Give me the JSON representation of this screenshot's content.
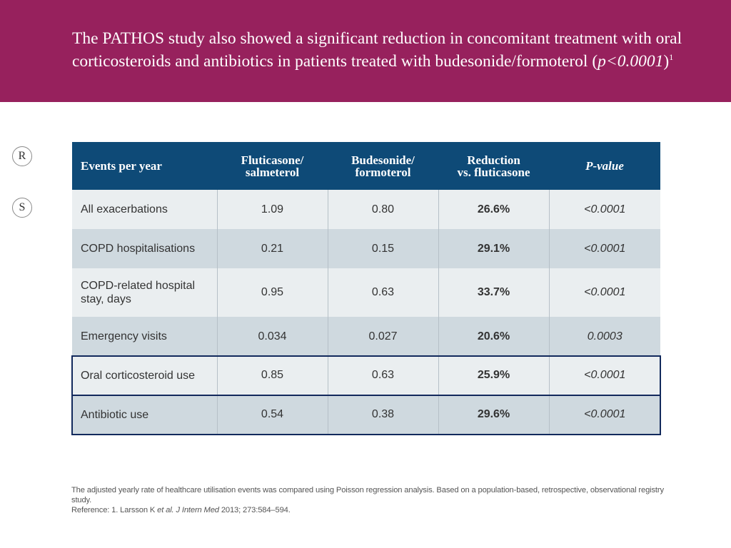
{
  "header": {
    "title_main": "The PATHOS study also showed a significant reduction in concomitant treatment with oral corticosteroids and antibiotics in patients treated with budesonide/formoterol (",
    "title_p": "p<0.0001",
    "title_close": ")",
    "title_sup": "1",
    "background_color": "#97215d"
  },
  "side_markers": {
    "r": "R",
    "s": "S"
  },
  "table": {
    "header_color": "#0e4a77",
    "columns": {
      "events": "Events per year",
      "flu_line1": "Fluticasone/",
      "flu_line2": "salmeterol",
      "bud_line1": "Budesonide/",
      "bud_line2": "formoterol",
      "red_line1": "Reduction",
      "red_line2": "vs. fluticasone",
      "pvalue": "P-value"
    },
    "rows": [
      {
        "event": "All exacerbations",
        "fluticasone": "1.09",
        "budesonide": "0.80",
        "reduction": "26.6%",
        "pvalue": "<0.0001"
      },
      {
        "event": "COPD hospitalisations",
        "fluticasone": "0.21",
        "budesonide": "0.15",
        "reduction": "29.1%",
        "pvalue": "<0.0001"
      },
      {
        "event": "COPD-related hospital stay, days",
        "fluticasone": "0.95",
        "budesonide": "0.63",
        "reduction": "33.7%",
        "pvalue": "<0.0001"
      },
      {
        "event": "Emergency visits",
        "fluticasone": "0.034",
        "budesonide": "0.027",
        "reduction": "20.6%",
        "pvalue": "0.0003"
      },
      {
        "event": "Oral corticosteroid use",
        "fluticasone": "0.85",
        "budesonide": "0.63",
        "reduction": "25.9%",
        "pvalue": "<0.0001"
      },
      {
        "event": "Antibiotic use",
        "fluticasone": "0.54",
        "budesonide": "0.38",
        "reduction": "29.6%",
        "pvalue": "<0.0001"
      }
    ],
    "highlight_color": "#12295c"
  },
  "footnote": {
    "line1": "The adjusted yearly rate of healthcare utilisation events was compared using Poisson regression analysis. Based on a population-based, retrospective, observational registry study.",
    "ref_prefix": "Reference: 1. Larsson K ",
    "ref_etal": "et al.",
    "ref_space": " ",
    "ref_journal": "J Intern Med",
    "ref_rest": " 2013; 273:584–594."
  }
}
